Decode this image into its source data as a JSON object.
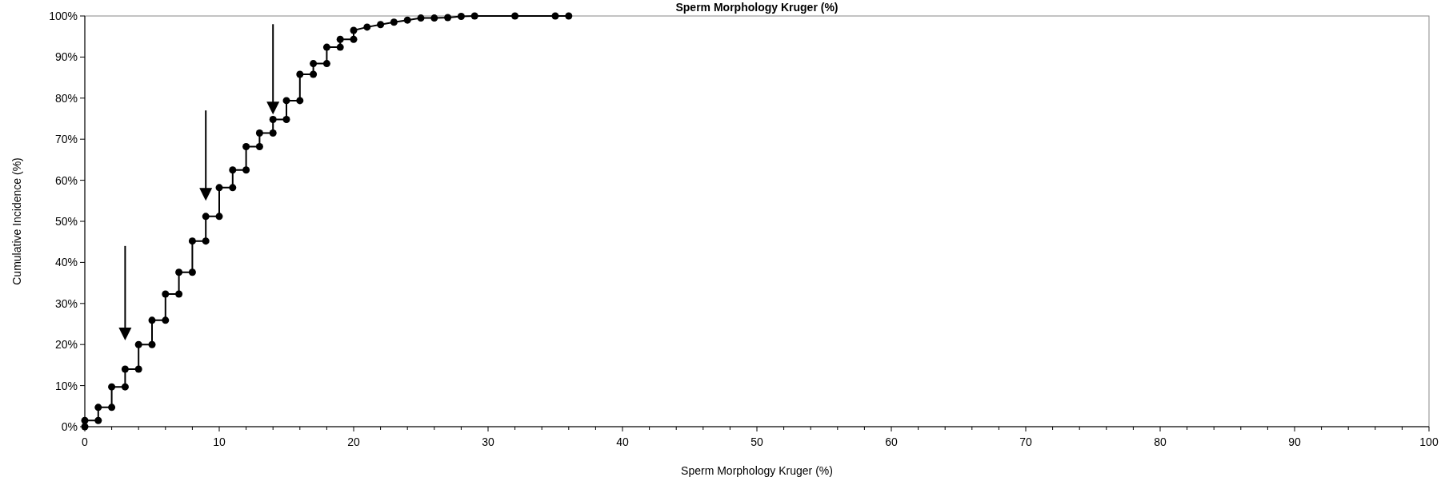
{
  "chart_data": {
    "type": "line",
    "title": "Sperm Morphology Kruger (%)",
    "xlabel": "Sperm Morphology Kruger (%)",
    "ylabel": "Cumulative Incidence (%)",
    "series": [
      {
        "color": "#000000",
        "x": [
          0,
          0,
          1,
          1,
          2,
          2,
          3,
          3,
          4,
          4,
          5,
          5,
          6,
          6,
          7,
          7,
          8,
          8,
          9,
          9,
          10,
          10,
          11,
          11,
          12,
          12,
          13,
          13,
          14,
          14,
          15,
          15,
          16,
          16,
          17,
          17,
          18,
          18,
          19,
          19,
          20,
          20,
          21,
          22,
          23,
          24,
          25,
          26,
          27,
          28,
          29,
          32,
          35,
          36
        ],
        "values": [
          0,
          1.5,
          1.5,
          4.7,
          4.7,
          9.7,
          9.7,
          14,
          14,
          20,
          20,
          25.9,
          25.9,
          32.3,
          32.3,
          37.6,
          37.6,
          45.2,
          45.2,
          51.2,
          51.2,
          58.2,
          58.2,
          62.5,
          62.5,
          68.2,
          68.2,
          71.5,
          71.5,
          74.8,
          74.8,
          79.4,
          79.4,
          85.8,
          85.8,
          88.4,
          88.4,
          92.4,
          92.4,
          94.3,
          94.3,
          96.5,
          97.3,
          97.9,
          98.5,
          99,
          99.5,
          99.5,
          99.6,
          99.9,
          100,
          100,
          100,
          100
        ]
      }
    ],
    "xlim": [
      0,
      100
    ],
    "xticks": [
      0,
      {
        "value": 2,
        "label": null
      },
      {
        "value": 4,
        "label": null
      },
      {
        "value": 6,
        "label": null
      },
      {
        "value": 8,
        "label": null
      },
      10,
      {
        "value": 12,
        "label": null
      },
      {
        "value": 14,
        "label": null
      },
      {
        "value": 16,
        "label": null
      },
      {
        "value": 18,
        "label": null
      },
      20,
      {
        "value": 22,
        "label": null
      },
      {
        "value": 24,
        "label": null
      },
      {
        "value": 26,
        "label": null
      },
      {
        "value": 28,
        "label": null
      },
      30,
      {
        "value": 32,
        "label": null
      },
      {
        "value": 34,
        "label": null
      },
      {
        "value": 36,
        "label": null
      },
      {
        "value": 38,
        "label": null
      },
      40,
      {
        "value": 42,
        "label": null
      },
      {
        "value": 44,
        "label": null
      },
      {
        "value": 46,
        "label": null
      },
      {
        "value": 48,
        "label": null
      },
      50,
      {
        "value": 52,
        "label": null
      },
      {
        "value": 54,
        "label": null
      },
      {
        "value": 56,
        "label": null
      },
      {
        "value": 58,
        "label": null
      },
      60,
      {
        "value": 62,
        "label": null
      },
      {
        "value": 64,
        "label": null
      },
      {
        "value": 66,
        "label": null
      },
      {
        "value": 68,
        "label": null
      },
      70,
      {
        "value": 72,
        "label": null
      },
      {
        "value": 74,
        "label": null
      },
      {
        "value": 76,
        "label": null
      },
      {
        "value": 78,
        "label": null
      },
      80,
      {
        "value": 82,
        "label": null
      },
      {
        "value": 84,
        "label": null
      },
      {
        "value": 86,
        "label": null
      },
      {
        "value": 88,
        "label": null
      },
      90,
      {
        "value": 92,
        "label": null
      },
      {
        "value": 94,
        "label": null
      },
      {
        "value": 96,
        "label": null
      },
      {
        "value": 98,
        "label": null
      },
      100
    ],
    "ylim": [
      0,
      100
    ],
    "yticks": [
      {
        "value": 0,
        "label": "0%"
      },
      {
        "value": 10,
        "label": "10%"
      },
      {
        "value": 20,
        "label": "20%"
      },
      {
        "value": 30,
        "label": "30%"
      },
      {
        "value": 40,
        "label": "40%"
      },
      {
        "value": 50,
        "label": "50%"
      },
      {
        "value": 60,
        "label": "60%"
      },
      {
        "value": 70,
        "label": "70%"
      },
      {
        "value": 80,
        "label": "80%"
      },
      {
        "value": 90,
        "label": "90%"
      },
      {
        "value": 100,
        "label": "100%"
      }
    ],
    "grid": false,
    "marker": "circle",
    "line_style": "solid"
  }
}
